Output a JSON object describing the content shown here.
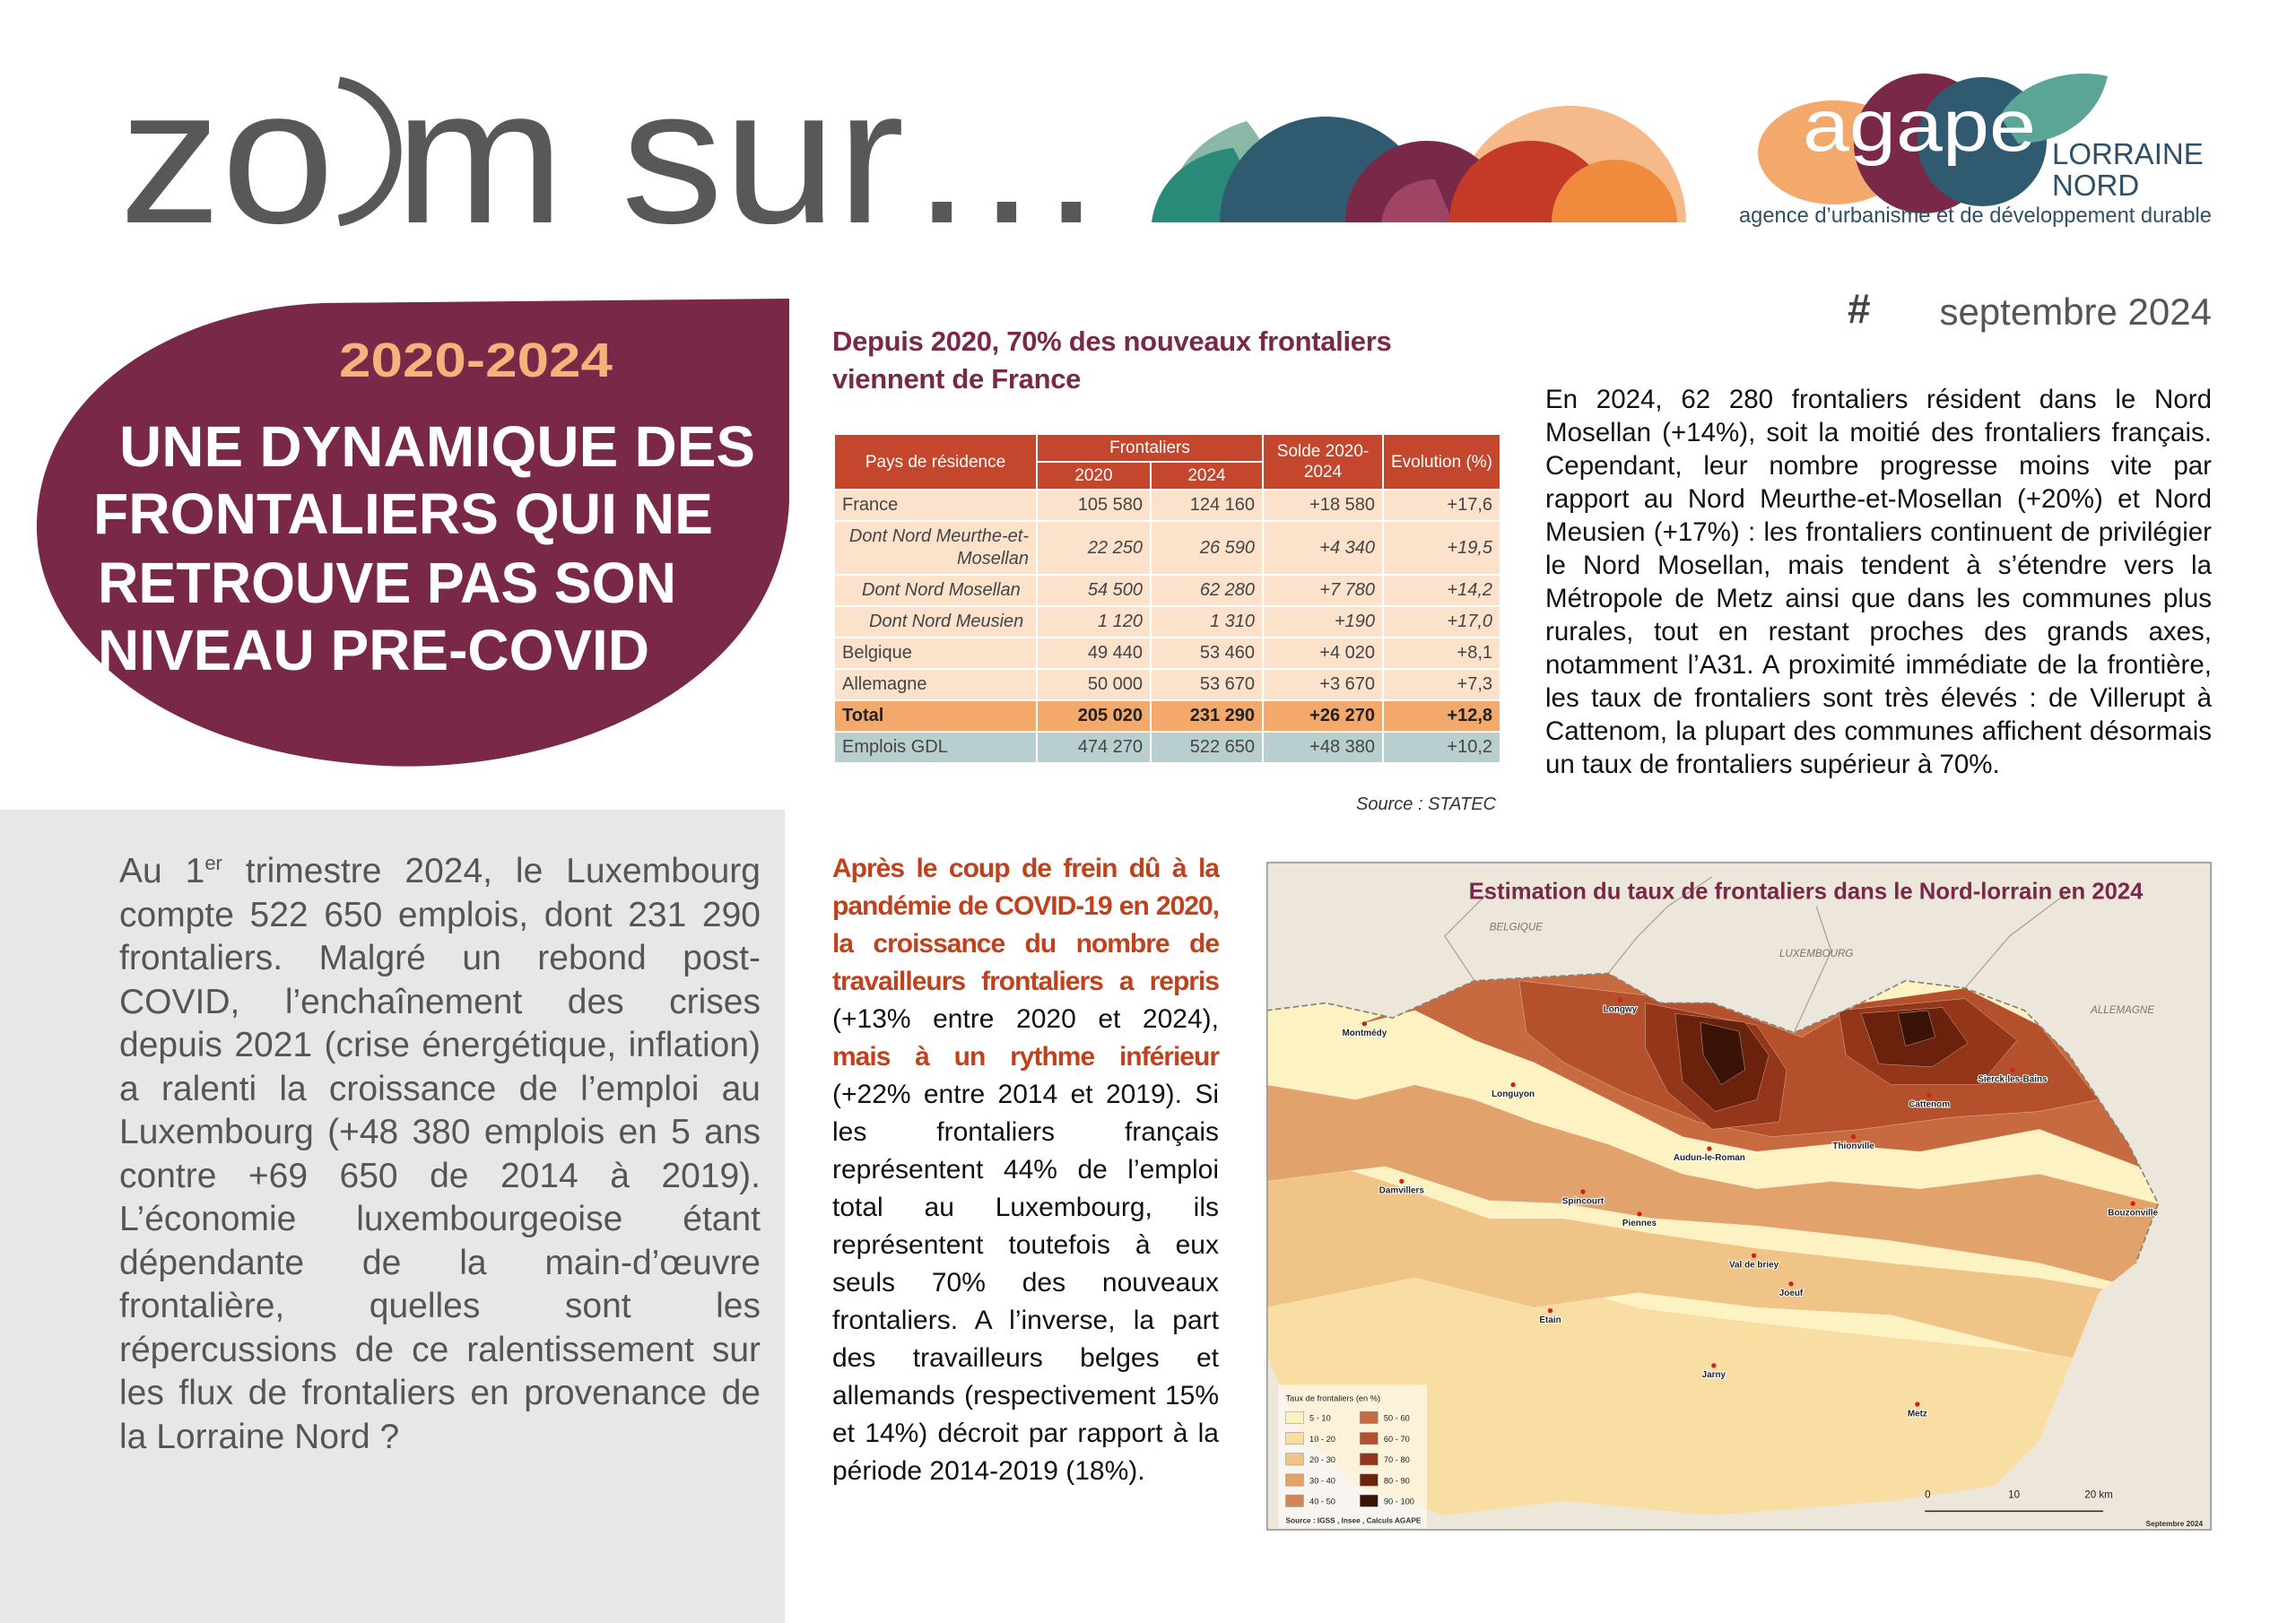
{
  "header": {
    "brand": {
      "left": "zo",
      "right": "m sur…"
    },
    "logo": {
      "name": "agape",
      "region_line1": "LORRAINE",
      "region_line2": "NORD",
      "tagline": "agence d’urbanisme et de développement durable"
    },
    "issue": {
      "hash": "#",
      "date": "septembre 2024"
    }
  },
  "hero": {
    "period": "2020-2024",
    "title_lines": [
      "UNE DYNAMIQUE DES",
      "FRONTALIERS QUI NE",
      "RETROUVE PAS SON",
      "NIVEAU PRE-COVID"
    ]
  },
  "intro": {
    "parts": [
      "Au 1",
      "er",
      " trimestre 2024, le Luxembourg compte 522 650 emplois, dont 231 290 frontaliers. Malgré un rebond post-COVID, l’enchaînement des crises depuis 2021 (crise énergétique, inflation) a ralenti la croissance de l’emploi au Luxembourg (+48 380 emplois en 5 ans contre +69 650 de 2014 à 2019). L’économie luxembourgeoise étant dépendante de la main-d’œuvre frontalière, quelles sont les répercussions de ce ralentissement sur les flux de frontaliers en provenance de la Lorraine Nord ?"
    ]
  },
  "table_block": {
    "title_lines": [
      "Depuis 2020, 70% des nouveaux frontaliers",
      "viennent de France"
    ],
    "table": {
      "col_header": "Pays de résidence",
      "group_header": "Frontaliers",
      "years": [
        "2020",
        "2024"
      ],
      "solde": "Solde 2020-2024",
      "evolution": "Evolution (%)",
      "rows": [
        [
          "France",
          "105 580",
          "124 160",
          "+18 580",
          "+17,6"
        ],
        [
          "Dont Nord Meurthe-et-Mosellan",
          "22 250",
          "26 590",
          "+4 340",
          "+19,5"
        ],
        [
          "Dont Nord Mosellan",
          "54 500",
          "62 280",
          "+7 780",
          "+14,2"
        ],
        [
          "Dont Nord Meusien",
          "1 120",
          "1 310",
          "+190",
          "+17,0"
        ],
        [
          "Belgique",
          "49 440",
          "53 460",
          "+4 020",
          "+8,1"
        ],
        [
          "Allemagne",
          "50 000",
          "53 670",
          "+3 670",
          "+7,3"
        ],
        [
          "Total",
          "205 020",
          "231 290",
          "+26 270",
          "+12,8"
        ],
        [
          "Emplois GDL",
          "474 270",
          "522 650",
          "+48 380",
          "+10,2"
        ]
      ]
    },
    "source": "Source : STATEC"
  },
  "analysis": {
    "segments": [
      {
        "text": "Après le coup de frein dû à la pandémie de COVID-19 en 2020, la croissance du nombre de travailleurs frontaliers a repris",
        "strong": true
      },
      {
        "text": " (+13% entre 2020 et 2024), ",
        "strong": false
      },
      {
        "text": "mais à un rythme inférieur",
        "strong": true
      },
      {
        "text": " (+22% entre 2014 et 2019). Si les frontaliers français représentent 44% de l’emploi total au Luxembourg, ils représentent toutefois à eux seuls 70% des nouveaux frontaliers. A l’inverse, la part des travailleurs belges et allemands (respectivement 15% et 14%) décroit par rapport à la période 2014-2019 (18%).",
        "strong": false
      }
    ]
  },
  "summary": {
    "text": "En 2024, 62 280 frontaliers résident dans le Nord Mosellan (+14%), soit la moitié des frontaliers français. Cependant, leur nombre progresse moins vite par rapport au Nord Meurthe-et-Mosellan (+20%) et Nord Meusien (+17%) : les frontaliers continuent de privilégier le Nord Mosellan, mais tendent à s’étendre vers la Métropole de Metz ainsi que dans les communes plus rurales, tout en restant proches des grands axes, notamment l’A31. A proximité immédiate de la frontière, les taux de frontaliers sont très élevés : de Villerupt à Cattenom, la plupart des communes affichent désormais un taux de frontaliers supérieur à 70%."
  },
  "map": {
    "title": "Estimation du taux de frontaliers dans le Nord-lorrain en 2024",
    "countries": [
      "BELGIQUE",
      "LUXEMBOURG",
      "ALLEMAGNE"
    ],
    "towns": [
      "Montmédy",
      "Longwy",
      "Longuyon",
      "Audun-le-Roman",
      "Thionville",
      "Cattenom",
      "Sierck-les-Bains",
      "Damvillers",
      "Spincourt",
      "Piennes",
      "Bouzonville",
      "Val de briey",
      "Joeuf",
      "Etain",
      "Jarny",
      "Metz"
    ],
    "legend": {
      "title": "Taux de frontaliers (en %)",
      "items": [
        {
          "label": "5 - 10",
          "color": "#fdf3c2"
        },
        {
          "label": "10 - 20",
          "color": "#f8dea2"
        },
        {
          "label": "20 - 30",
          "color": "#f0c386"
        },
        {
          "label": "30 - 40",
          "color": "#e2a26c"
        },
        {
          "label": "40 - 50",
          "color": "#d48555"
        },
        {
          "label": "50 - 60",
          "color": "#c86a3f"
        },
        {
          "label": "60 - 70",
          "color": "#b4502b"
        },
        {
          "label": "70 - 80",
          "color": "#933619"
        },
        {
          "label": "80 - 90",
          "color": "#6b220c"
        },
        {
          "label": "90 - 100",
          "color": "#3a1206"
        }
      ]
    },
    "scale": [
      "0",
      "10",
      "20 km"
    ],
    "source": "Source : IGSS , Insee , Calculs AGAPE",
    "date": "Septembre 2024"
  }
}
